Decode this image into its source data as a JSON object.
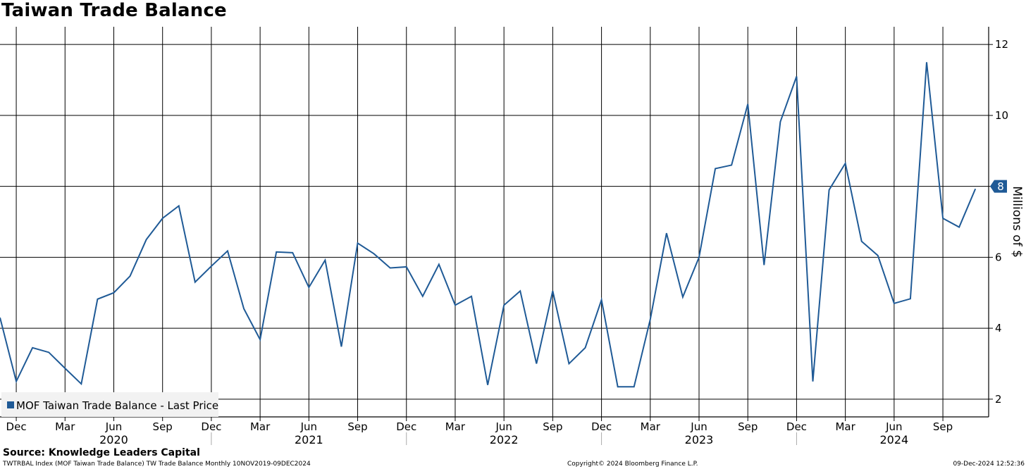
{
  "chart_data": {
    "type": "line",
    "title": "Taiwan Trade Balance",
    "ylabel": "Millions of $",
    "ylim": [
      1.5,
      12.5
    ],
    "y_ticks": [
      2,
      4,
      6,
      8,
      10,
      12
    ],
    "x_month_ticks": [
      "Dec",
      "Mar",
      "Jun",
      "Sep",
      "Dec",
      "Mar",
      "Jun",
      "Sep",
      "Dec",
      "Mar",
      "Jun",
      "Sep",
      "Dec",
      "Mar",
      "Jun",
      "Sep",
      "Dec",
      "Mar",
      "Jun",
      "Sep"
    ],
    "x_year_labels": [
      "2020",
      "2021",
      "2022",
      "2023",
      "2024"
    ],
    "grid": true,
    "legend_position": "bottom-left",
    "last_value_label": "8",
    "series": [
      {
        "name": "MOF Taiwan Trade Balance - Last Price",
        "color": "#1f5a96",
        "start": "2019-11",
        "frequency": "monthly",
        "values": [
          4.3,
          2.5,
          3.45,
          3.32,
          2.87,
          2.43,
          4.82,
          5.0,
          5.47,
          6.5,
          7.1,
          7.45,
          5.3,
          5.75,
          6.18,
          4.55,
          3.68,
          6.15,
          6.13,
          5.15,
          5.92,
          3.48,
          6.4,
          6.1,
          5.7,
          5.73,
          4.9,
          5.8,
          4.65,
          4.9,
          2.4,
          4.65,
          5.05,
          3.0,
          5.05,
          3.0,
          3.45,
          4.8,
          2.35,
          2.35,
          4.25,
          6.68,
          4.88,
          6.0,
          8.5,
          8.6,
          10.32,
          5.78,
          9.82,
          11.1,
          2.5,
          7.9,
          8.65,
          6.45,
          6.05,
          4.7,
          4.83,
          11.5,
          7.1,
          6.85,
          7.93
        ]
      }
    ]
  },
  "footer": {
    "source": "Source: Knowledge Leaders Capital",
    "index_info": "TWTRBAL Index (MOF Taiwan Trade Balance) TW Trade Balance  Monthly 10NOV2019-09DEC2024",
    "copyright": "Copyright© 2024 Bloomberg Finance L.P.",
    "timestamp": "09-Dec-2024 12:52:36"
  }
}
